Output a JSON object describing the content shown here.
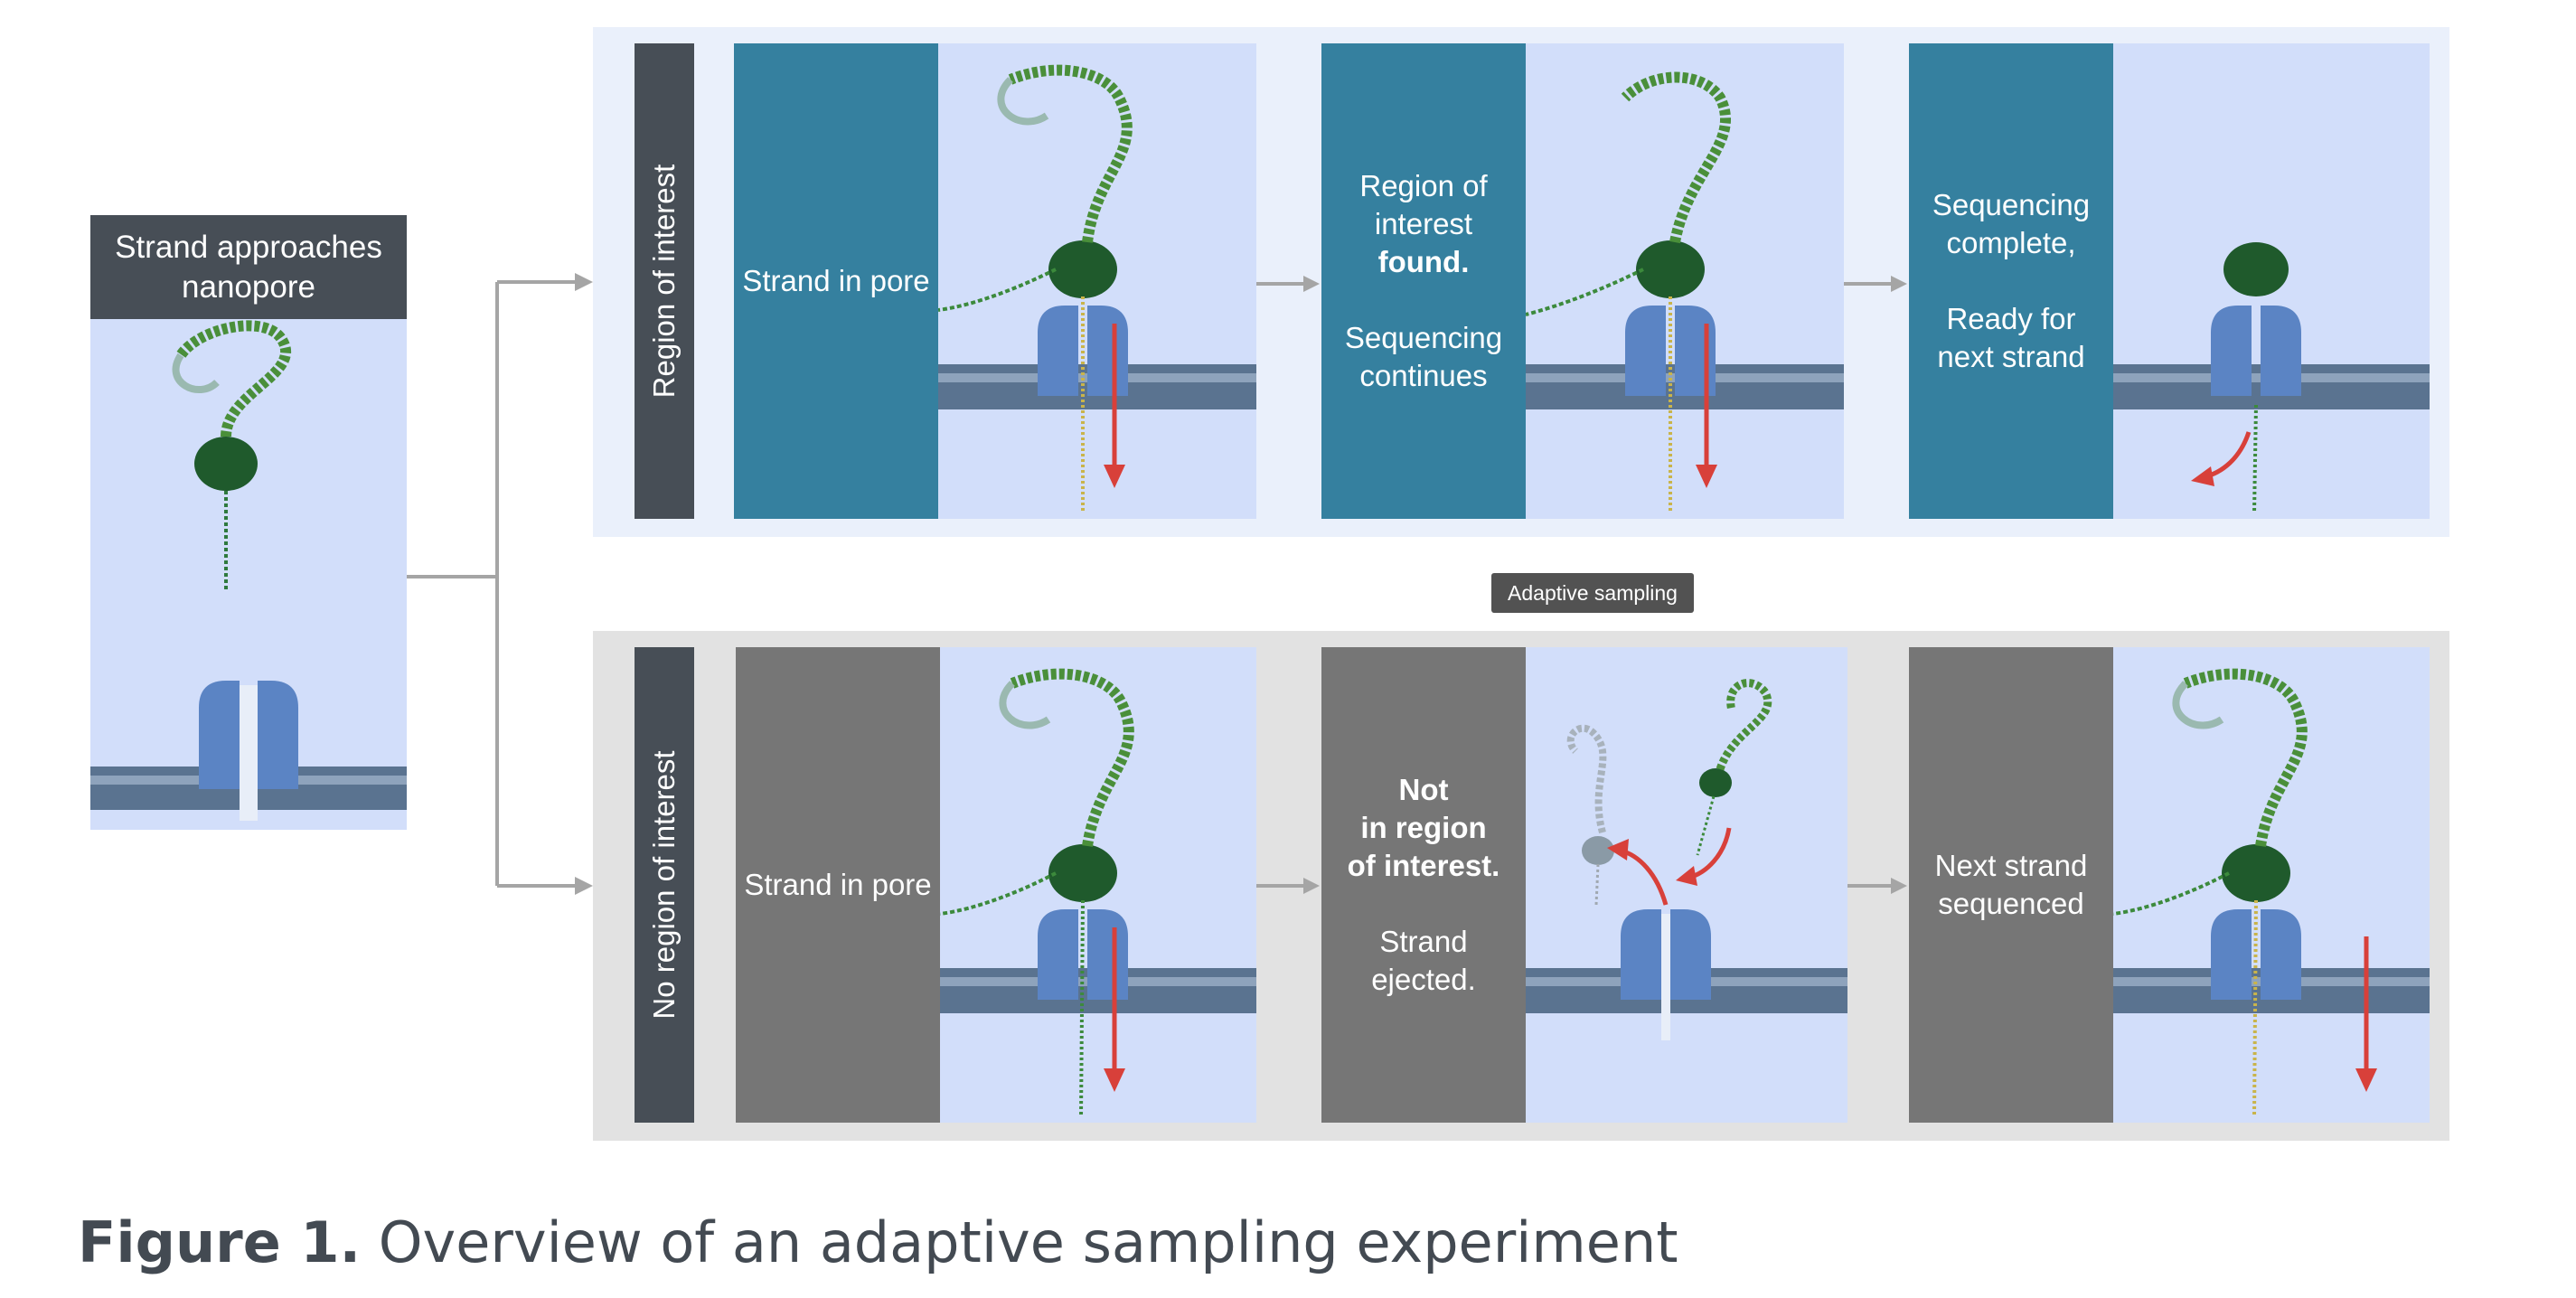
{
  "start": {
    "title_line1": "Strand approaches",
    "title_line2": "nanopore"
  },
  "rows": {
    "roi": {
      "label": "Region of interest",
      "cards": [
        {
          "lines": [
            "Strand in pore"
          ]
        },
        {
          "lines": [
            "Region of",
            "interest",
            "found.",
            "",
            "Sequencing",
            "continues"
          ]
        },
        {
          "lines": [
            "Sequencing",
            "complete,",
            "",
            "Ready for",
            "next strand"
          ]
        }
      ]
    },
    "noroi": {
      "label": "No region of interest",
      "cards": [
        {
          "lines": [
            "Strand in pore"
          ]
        },
        {
          "lines": [
            "Not",
            "in region",
            "of interest.",
            "",
            "Strand",
            "ejected."
          ]
        },
        {
          "lines": [
            "Next strand",
            "sequenced"
          ]
        }
      ]
    }
  },
  "tooltip": "Adaptive sampling",
  "caption": {
    "label": "Figure 1.",
    "text": "Overview of an adaptive sampling experiment"
  },
  "colors": {
    "teal": "#35809f",
    "grey": "#767676",
    "label_bg": "#474e56",
    "panel_bg": "#d2defa",
    "red_arrow": "#d8403a"
  },
  "icons": [
    "nanopore-icon",
    "dna-strand-icon",
    "motor-protein-icon",
    "red-arrow-icon",
    "flow-arrow-icon"
  ]
}
